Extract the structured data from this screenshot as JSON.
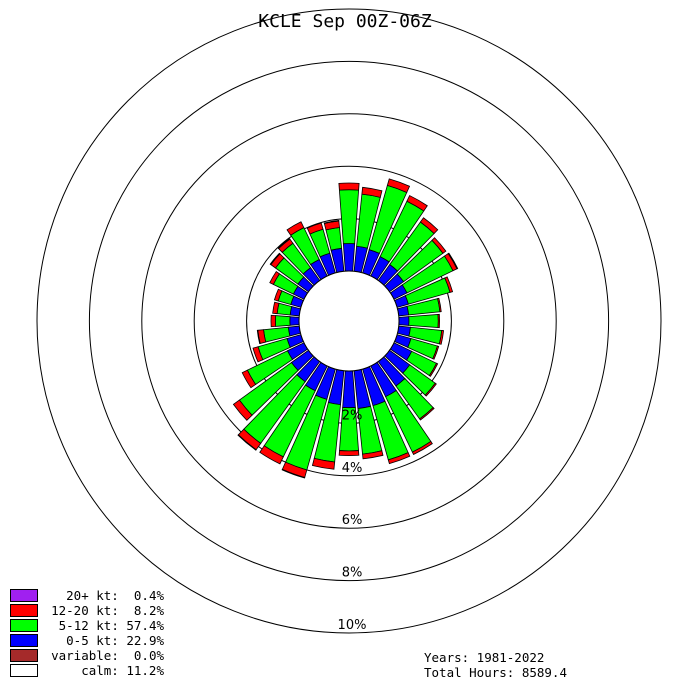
{
  "chart_data": {
    "type": "windrose",
    "title": "KCLE Sep 00Z-06Z",
    "ring_labels": [
      "2%",
      "4%",
      "6%",
      "8%",
      "10%"
    ],
    "ring_percents": [
      2,
      4,
      6,
      8,
      10
    ],
    "calm_percent": 11.2,
    "directions_deg": [
      0,
      10,
      20,
      30,
      40,
      50,
      60,
      70,
      80,
      90,
      100,
      110,
      120,
      130,
      140,
      150,
      160,
      170,
      180,
      190,
      200,
      210,
      220,
      230,
      240,
      250,
      260,
      270,
      280,
      290,
      300,
      310,
      320,
      330,
      340,
      350
    ],
    "series": [
      {
        "name": "0-5 kt",
        "color": "#0000ff",
        "values": [
          1.05,
          0.96,
          0.92,
          0.82,
          0.75,
          0.66,
          0.55,
          0.45,
          0.38,
          0.38,
          0.45,
          0.55,
          0.75,
          0.95,
          1.15,
          1.3,
          1.45,
          1.45,
          1.4,
          1.3,
          1.2,
          1.05,
          0.95,
          0.8,
          0.7,
          0.55,
          0.42,
          0.35,
          0.35,
          0.4,
          0.45,
          0.5,
          0.6,
          0.7,
          0.78,
          0.88
        ]
      },
      {
        "name": "5-12 kt",
        "color": "#00ff00",
        "values": [
          2.05,
          2.0,
          2.55,
          2.35,
          2.0,
          1.85,
          1.95,
          1.65,
          1.2,
          1.12,
          1.2,
          1.05,
          1.05,
          1.2,
          1.55,
          2.35,
          2.15,
          1.75,
          1.65,
          2.2,
          2.8,
          2.8,
          2.9,
          2.45,
          1.7,
          1.15,
          0.95,
          0.55,
          0.5,
          0.5,
          0.85,
          1.05,
          1.15,
          1.35,
          0.95,
          0.8
        ]
      },
      {
        "name": "12-20 kt",
        "color": "#ff0000",
        "values": [
          0.26,
          0.26,
          0.26,
          0.24,
          0.2,
          0.14,
          0.17,
          0.1,
          0.05,
          0.05,
          0.07,
          0.05,
          0.05,
          0.05,
          0.05,
          0.1,
          0.15,
          0.18,
          0.18,
          0.28,
          0.3,
          0.3,
          0.3,
          0.28,
          0.22,
          0.2,
          0.22,
          0.17,
          0.17,
          0.15,
          0.15,
          0.22,
          0.2,
          0.25,
          0.25,
          0.25
        ]
      },
      {
        "name": "20+ kt",
        "color": "#a020f0",
        "values": [
          0,
          0,
          0,
          0,
          0,
          0,
          0.03,
          0,
          0,
          0,
          0,
          0,
          0,
          0,
          0,
          0,
          0,
          0,
          0,
          0,
          0.02,
          0,
          0.02,
          0,
          0,
          0,
          0.02,
          0,
          0,
          0,
          0,
          0.03,
          0.03,
          0,
          0,
          0.02
        ]
      }
    ]
  },
  "legend": [
    {
      "color": "#a020f0",
      "label": "20+ kt:  0.4%"
    },
    {
      "color": "#ff0000",
      "label": "12-20 kt:  8.2%"
    },
    {
      "color": "#00ff00",
      "label": "5-12 kt: 57.4%"
    },
    {
      "color": "#0000ff",
      "label": "0-5 kt: 22.9%"
    },
    {
      "color": "#a52a2a",
      "label": "variable:  0.0%"
    },
    {
      "color": "#ffffff",
      "label": "calm: 11.2%"
    }
  ],
  "footer": {
    "years": "Years: 1981-2022",
    "total_hours": "Total Hours: 8589.4"
  }
}
